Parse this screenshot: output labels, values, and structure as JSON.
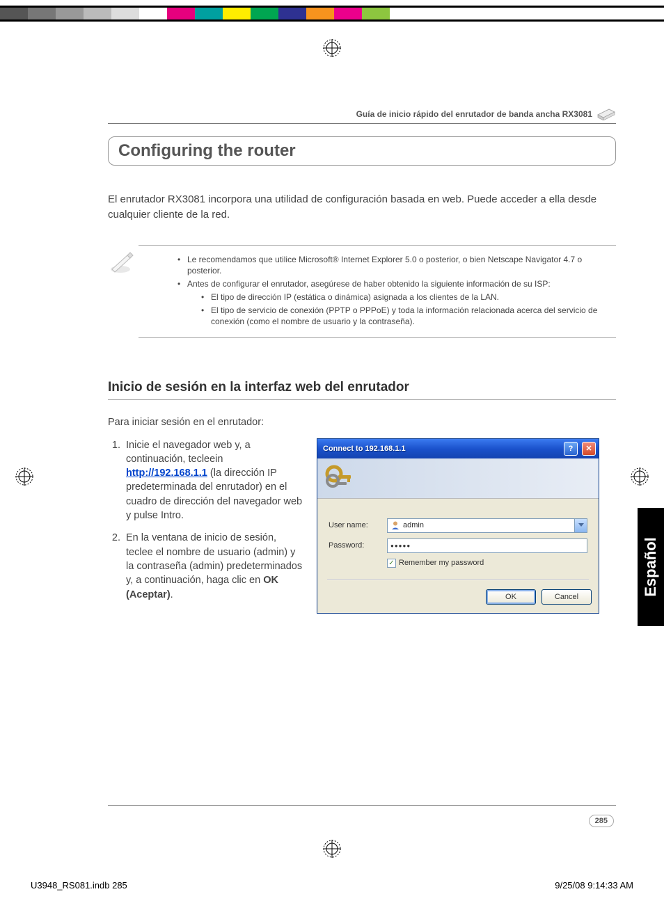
{
  "print": {
    "chip_colors": [
      "#555555",
      "#777777",
      "#999999",
      "#bbbbbb",
      "#dddddd",
      "#ffffff",
      "#e6007e",
      "#00a0a0",
      "#ffed00",
      "#00a651",
      "#2e3192",
      "#f7931e",
      "#ec008c",
      "#8dc63f"
    ],
    "file_label": "U3948_RS081.indb   285",
    "timestamp": "9/25/08   9:14:33 AM"
  },
  "header": {
    "text": "Guía de inicio rápido del enrutador de banda ancha RX3081"
  },
  "section_title": "Configuring the router",
  "intro": "El enrutador RX3081 incorpora una utilidad de configuración basada en web. Puede acceder a ella desde cualquier cliente de la red.",
  "notes": {
    "item1": "Le recomendamos que utilice Microsoft® Internet Explorer 5.0 o posterior, o bien Netscape Navigator 4.7 o posterior.",
    "item2": "Antes de configurar el enrutador, asegúrese de haber obtenido la siguiente información de su ISP:",
    "sub1": "El tipo de dirección IP (estática o dinámica) asignada a los clientes de la LAN.",
    "sub2": "El tipo de servicio de conexión (PPTP o PPPoE) y toda la información relacionada acerca del servicio de conexión (como el nombre de usuario y la contraseña)."
  },
  "subheading": "Inicio de sesión en la interfaz web del enrutador",
  "steps": {
    "lead": "Para iniciar sesión en el enrutador:",
    "s1_a": "Inicie el navegador web y, a continuación, tecleein ",
    "s1_link": "http://192.168.1.1",
    "s1_b": " (la dirección IP predeterminada del enrutador) en el cuadro de dirección del navegador web y pulse Intro.",
    "s2_a": "En la ventana de inicio de sesión, teclee el nombre de usuario (admin) y la contraseña (admin) predeterminados y, a continuación, haga clic en ",
    "s2_bold": "OK (Aceptar)",
    "s2_b": "."
  },
  "dialog": {
    "title": "Connect to 192.168.1.1",
    "username_label": "User name:",
    "password_label": "Password:",
    "username_value": "admin",
    "password_value": "●●●●●",
    "remember": "Remember my password",
    "ok": "OK",
    "cancel": "Cancel"
  },
  "lang_tab": "Español",
  "page_number": "285"
}
